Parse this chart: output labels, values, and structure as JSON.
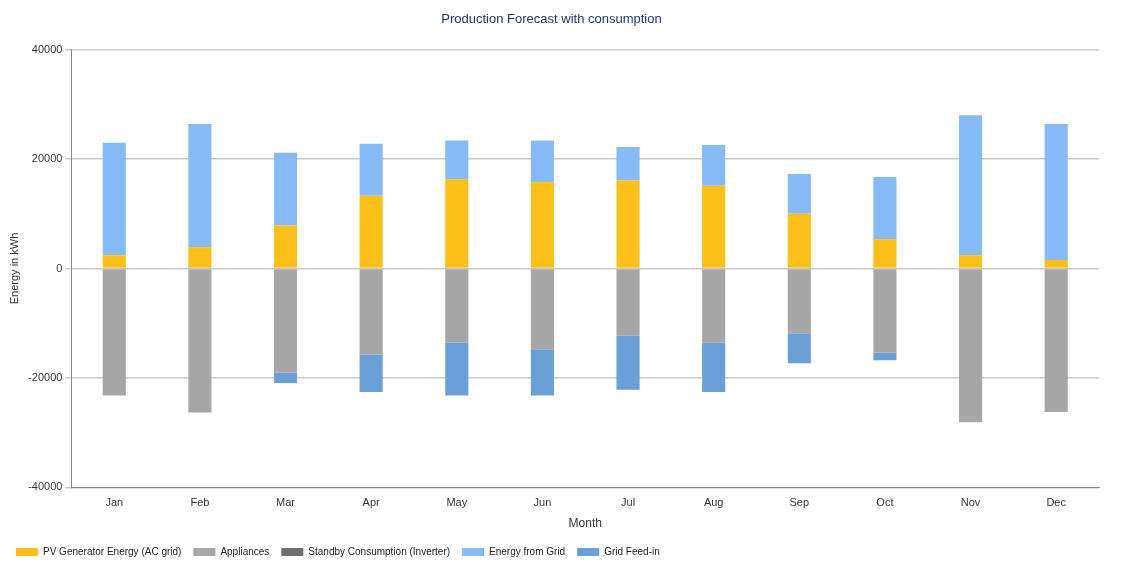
{
  "chart_data": {
    "type": "bar",
    "title": "Production Forecast with consumption",
    "xlabel": "Month",
    "ylabel": "Energy in kWh",
    "categories": [
      "Jan",
      "Feb",
      "Mar",
      "Apr",
      "May",
      "Jun",
      "Jul",
      "Aug",
      "Sep",
      "Oct",
      "Nov",
      "Dec"
    ],
    "stacked": true,
    "series": [
      {
        "name": "PV Generator Energy (AC grid)",
        "color": "#fdbf1a",
        "values": [
          2400,
          3900,
          7850,
          13300,
          16300,
          15750,
          16100,
          15100,
          10000,
          5350,
          2400,
          1550
        ]
      },
      {
        "name": "Appliances",
        "color": "#a6a6a6",
        "values": [
          -23200,
          -26300,
          -19050,
          -15700,
          -13500,
          -14750,
          -12300,
          -13550,
          -11850,
          -15400,
          -28100,
          -26200
        ]
      },
      {
        "name": "Standby Consumption (Inverter)",
        "color": "#707070",
        "values": [
          0,
          0,
          0,
          0,
          0,
          0,
          0,
          0,
          0,
          0,
          0,
          0
        ]
      },
      {
        "name": "Energy from Grid",
        "color": "#86bbf5",
        "values": [
          20600,
          22500,
          13300,
          9500,
          7100,
          7650,
          6100,
          7450,
          7250,
          11350,
          25600,
          24850
        ]
      },
      {
        "name": "Grid Feed-in",
        "color": "#6b9fd8",
        "values": [
          0,
          0,
          -1850,
          -6850,
          -9700,
          -8450,
          -9850,
          -9000,
          -5450,
          -1350,
          0,
          0
        ]
      }
    ],
    "ylim": [
      -40000,
      40000
    ],
    "yticks": [
      -40000,
      -20000,
      0,
      20000,
      40000
    ],
    "grid": "y",
    "legend": "bottom left"
  }
}
